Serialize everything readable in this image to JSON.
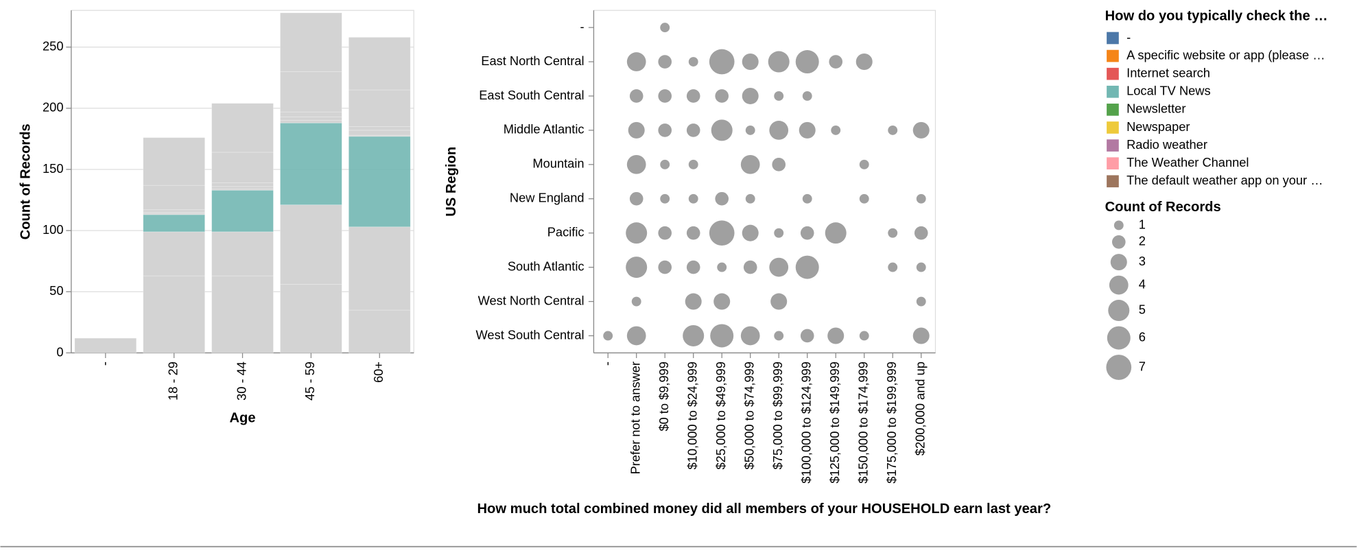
{
  "chart_data": [
    {
      "type": "stacked-bar",
      "x_title": "Age",
      "y_title": "Count of Records",
      "categories": [
        "-",
        "18 - 29",
        "30 - 44",
        "45 - 59",
        "60+"
      ],
      "ylim": [
        0,
        280
      ],
      "yticks": [
        0,
        50,
        100,
        150,
        200,
        250
      ],
      "grid": true,
      "legend_title": "How do you typically check the …",
      "highlight": "Local TV News",
      "muted_color": "#d3d3d3",
      "series": [
        {
          "name": "-",
          "color": "#4c78a8",
          "values": [
            12,
            0,
            0,
            0,
            0
          ]
        },
        {
          "name": "A specific website or app (please …",
          "color": "#f58518",
          "values": [
            0,
            63,
            63,
            56,
            35
          ]
        },
        {
          "name": "Internet search",
          "color": "#e45756",
          "values": [
            0,
            36,
            36,
            65,
            68
          ]
        },
        {
          "name": "Local TV News",
          "color": "#72b7b2",
          "values": [
            0,
            14,
            34,
            67,
            74
          ]
        },
        {
          "name": "Newsletter",
          "color": "#54a24b",
          "values": [
            0,
            1,
            1,
            2,
            1
          ]
        },
        {
          "name": "Newspaper",
          "color": "#eeca3b",
          "values": [
            0,
            1,
            2,
            3,
            4
          ]
        },
        {
          "name": "Radio weather",
          "color": "#b279a2",
          "values": [
            0,
            2,
            3,
            4,
            3
          ]
        },
        {
          "name": "The Weather Channel",
          "color": "#ff9da6",
          "values": [
            0,
            20,
            25,
            33,
            30
          ]
        },
        {
          "name": "The default weather app on your …",
          "color": "#9d755d",
          "values": [
            0,
            39,
            40,
            48,
            43
          ]
        }
      ]
    },
    {
      "type": "bubble-grid",
      "x_title": "How much total combined money did all members of your HOUSEHOLD earn last year?",
      "y_title": "US Region",
      "color": "#a0a0a0",
      "x_categories": [
        "-",
        "Prefer not to answer",
        "$0 to $9,999",
        "$10,000 to $24,999",
        "$25,000 to $49,999",
        "$50,000 to $74,999",
        "$75,000 to $99,999",
        "$100,000 to $124,999",
        "$125,000 to $149,999",
        "$150,000 to $174,999",
        "$175,000 to $199,999",
        "$200,000 and up"
      ],
      "y_categories": [
        "-",
        "East North Central",
        "East South Central",
        "Middle Atlantic",
        "Mountain",
        "New England",
        "Pacific",
        "South Atlantic",
        "West North Central",
        "West South Central"
      ],
      "values": [
        [
          null,
          null,
          1,
          null,
          null,
          null,
          null,
          null,
          null,
          null,
          null,
          null
        ],
        [
          null,
          4,
          2,
          1,
          7,
          3,
          5,
          6,
          2,
          3,
          null,
          null
        ],
        [
          null,
          2,
          2,
          2,
          2,
          3,
          1,
          1,
          null,
          null,
          null,
          null
        ],
        [
          null,
          3,
          2,
          2,
          5,
          1,
          4,
          3,
          1,
          null,
          1,
          3
        ],
        [
          null,
          4,
          1,
          1,
          null,
          4,
          2,
          null,
          null,
          1,
          null,
          null
        ],
        [
          null,
          2,
          1,
          1,
          2,
          1,
          null,
          1,
          null,
          1,
          null,
          1
        ],
        [
          null,
          5,
          2,
          2,
          7,
          3,
          1,
          2,
          5,
          null,
          1,
          2
        ],
        [
          null,
          5,
          2,
          2,
          1,
          2,
          4,
          6,
          null,
          null,
          1,
          1
        ],
        [
          null,
          1,
          null,
          3,
          3,
          null,
          3,
          null,
          null,
          null,
          null,
          1
        ],
        [
          1,
          4,
          null,
          5,
          6,
          4,
          1,
          2,
          3,
          1,
          null,
          3
        ]
      ],
      "size_legend": {
        "title": "Count of Records",
        "values": [
          1,
          2,
          3,
          4,
          5,
          6,
          7
        ]
      }
    }
  ]
}
